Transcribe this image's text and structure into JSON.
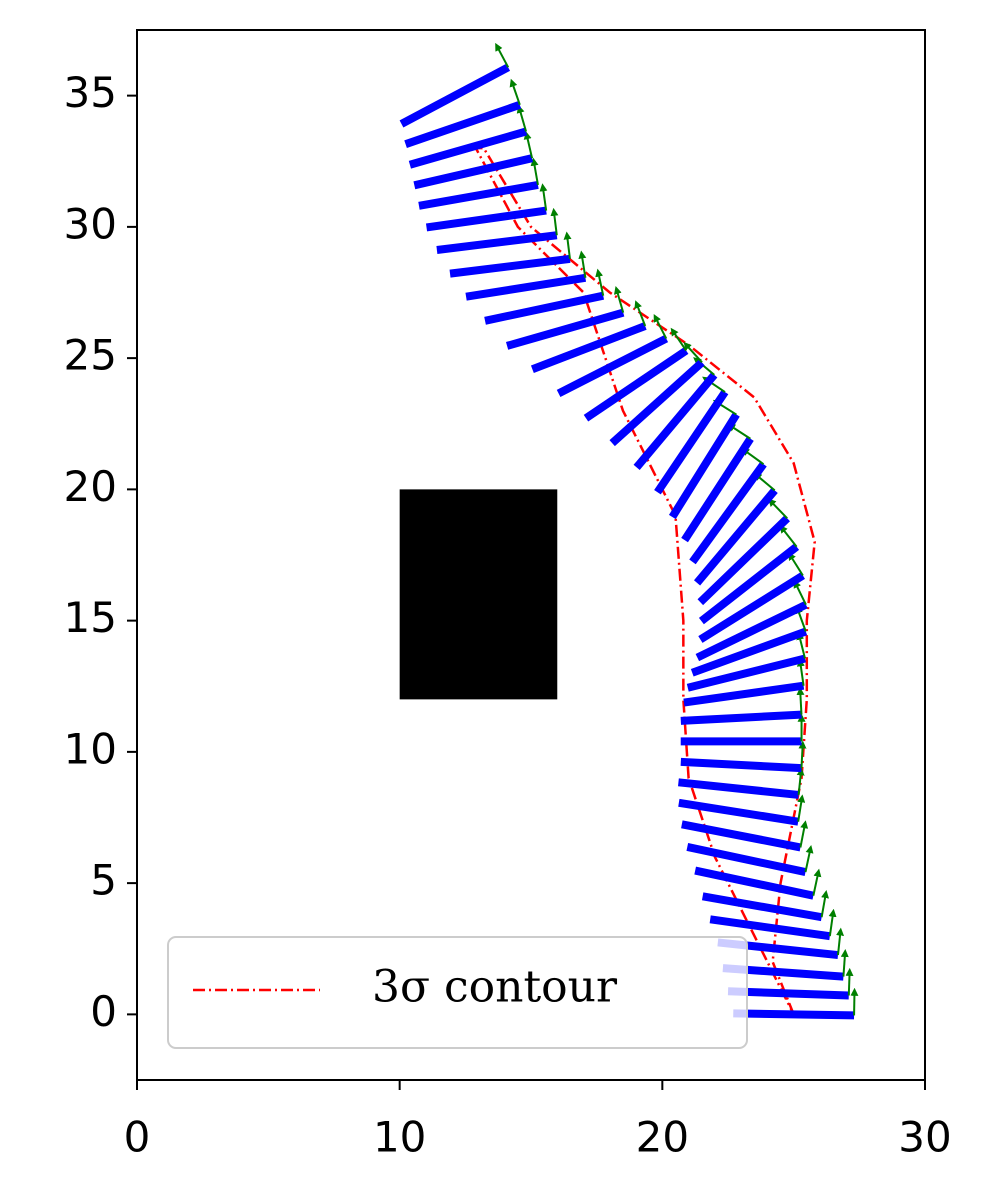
{
  "chart_data": {
    "type": "trajectory",
    "xlim": [
      0,
      30
    ],
    "ylim": [
      -2.5,
      37.5
    ],
    "xticks": [
      0,
      10,
      20,
      30
    ],
    "yticks": [
      0,
      5,
      10,
      15,
      20,
      25,
      30,
      35
    ],
    "obstacle": {
      "x": [
        10,
        16
      ],
      "y": [
        12,
        20
      ],
      "color": "#000000"
    },
    "poses": {
      "color": "#0000ff",
      "arrow_color": "#008000",
      "bar_length": 4.6,
      "x": [
        25.0,
        24.8,
        24.6,
        24.4,
        24.1,
        23.8,
        23.5,
        23.2,
        23.0,
        22.9,
        22.9,
        23.0,
        23.0,
        23.0,
        23.1,
        23.2,
        23.3,
        23.4,
        23.4,
        23.3,
        23.1,
        22.8,
        22.5,
        22.1,
        21.6,
        21.1,
        20.5,
        19.8,
        19.0,
        18.1,
        17.2,
        16.3,
        15.5,
        14.8,
        14.2,
        13.7,
        13.3,
        13.0,
        12.8,
        12.6,
        12.4,
        12.1
      ],
      "y": [
        0.0,
        0.8,
        1.6,
        2.5,
        3.3,
        4.1,
        5.0,
        5.9,
        6.8,
        7.7,
        8.6,
        9.5,
        10.4,
        11.3,
        12.2,
        13.0,
        13.8,
        14.6,
        15.5,
        16.4,
        17.3,
        18.2,
        19.1,
        20.0,
        20.9,
        21.8,
        22.6,
        23.3,
        24.0,
        24.7,
        25.4,
        26.1,
        26.9,
        27.7,
        28.5,
        29.4,
        30.3,
        31.2,
        32.1,
        33.0,
        33.9,
        35.0
      ],
      "angle": [
        -1,
        -2,
        -4,
        -6,
        -8,
        -10,
        -12,
        -12,
        -11,
        -9,
        -6,
        -3,
        0,
        3,
        8,
        14,
        20,
        26,
        32,
        38,
        44,
        50,
        54,
        57,
        58,
        56,
        50,
        42,
        34,
        27,
        21,
        16,
        12,
        9,
        7,
        7,
        8,
        10,
        13,
        16,
        19,
        28
      ]
    },
    "series": [
      {
        "name": "3σ contour",
        "color": "#ff0000",
        "x": [
          25.0,
          24.2,
          24.5,
          25.3,
          25.5,
          25.5,
          25.8,
          25.0,
          23.5,
          21.0,
          18.0,
          15.0,
          13.2,
          12.9,
          14.5,
          17.0,
          18.5,
          20.5,
          20.8,
          20.8,
          21.0,
          22.0,
          23.0,
          24.0,
          24.5,
          25.0
        ],
        "y": [
          0.0,
          2.0,
          5.0,
          9.0,
          12.0,
          15.0,
          18.0,
          21.0,
          23.5,
          25.5,
          27.5,
          30.0,
          33.0,
          33.0,
          30.0,
          27.5,
          23.0,
          19.0,
          15.0,
          12.0,
          9.0,
          6.0,
          4.0,
          2.0,
          1.0,
          0.0
        ]
      }
    ],
    "legend": "lower left"
  }
}
